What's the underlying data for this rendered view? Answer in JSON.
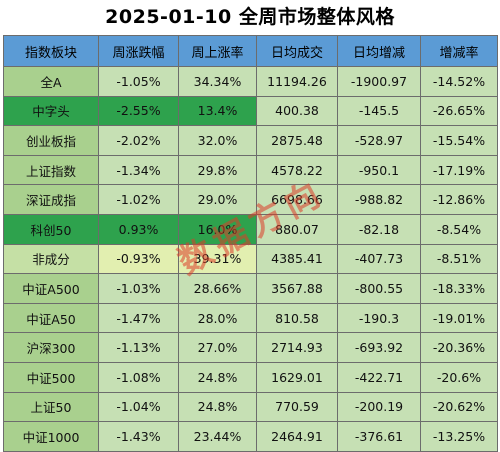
{
  "title": "2025-01-10  全周市场整体风格",
  "headers": [
    "指数板块",
    "周涨跌幅",
    "周上涨率",
    "日均成交",
    "日均增减",
    "增减率"
  ],
  "rows": [
    {
      "name": "全A",
      "chg": "-1.05%",
      "up": "34.34%",
      "vol": "11194.26",
      "diff": "-1900.97",
      "rate": "-14.52%"
    },
    {
      "name": "中字头",
      "chg": "-2.55%",
      "up": "13.4%",
      "vol": "400.38",
      "diff": "-145.5",
      "rate": "-26.65%"
    },
    {
      "name": "创业板指",
      "chg": "-2.02%",
      "up": "32.0%",
      "vol": "2875.48",
      "diff": "-528.97",
      "rate": "-15.54%"
    },
    {
      "name": "上证指数",
      "chg": "-1.34%",
      "up": "29.8%",
      "vol": "4578.22",
      "diff": "-950.1",
      "rate": "-17.19%"
    },
    {
      "name": "深证成指",
      "chg": "-1.02%",
      "up": "29.0%",
      "vol": "6698.66",
      "diff": "-988.82",
      "rate": "-12.86%"
    },
    {
      "name": "科创50",
      "chg": "0.93%",
      "up": "16.0%",
      "vol": "880.07",
      "diff": "-82.18",
      "rate": "-8.54%"
    },
    {
      "name": "非成分",
      "chg": "-0.93%",
      "up": "39.31%",
      "vol": "4385.41",
      "diff": "-407.73",
      "rate": "-8.51%"
    },
    {
      "name": "中证A500",
      "chg": "-1.03%",
      "up": "28.66%",
      "vol": "3567.88",
      "diff": "-800.55",
      "rate": "-18.33%"
    },
    {
      "name": "中证A50",
      "chg": "-1.47%",
      "up": "28.0%",
      "vol": "810.58",
      "diff": "-190.3",
      "rate": "-19.01%"
    },
    {
      "name": "沪深300",
      "chg": "-1.13%",
      "up": "27.0%",
      "vol": "2714.93",
      "diff": "-693.92",
      "rate": "-20.36%"
    },
    {
      "name": "中证500",
      "chg": "-1.08%",
      "up": "24.8%",
      "vol": "1629.01",
      "diff": "-422.71",
      "rate": "-20.6%"
    },
    {
      "name": "上证50",
      "chg": "-1.04%",
      "up": "24.8%",
      "vol": "770.59",
      "diff": "-200.19",
      "rate": "-20.62%"
    },
    {
      "name": "中证1000",
      "chg": "-1.43%",
      "up": "23.44%",
      "vol": "2464.91",
      "diff": "-376.61",
      "rate": "-13.25%"
    }
  ],
  "watermark": "数据方向",
  "colors": {
    "header": "#5b9bd5",
    "row": "#c6e0b4",
    "highlight": "#2ea24d",
    "yellow": "#e2efb0"
  }
}
